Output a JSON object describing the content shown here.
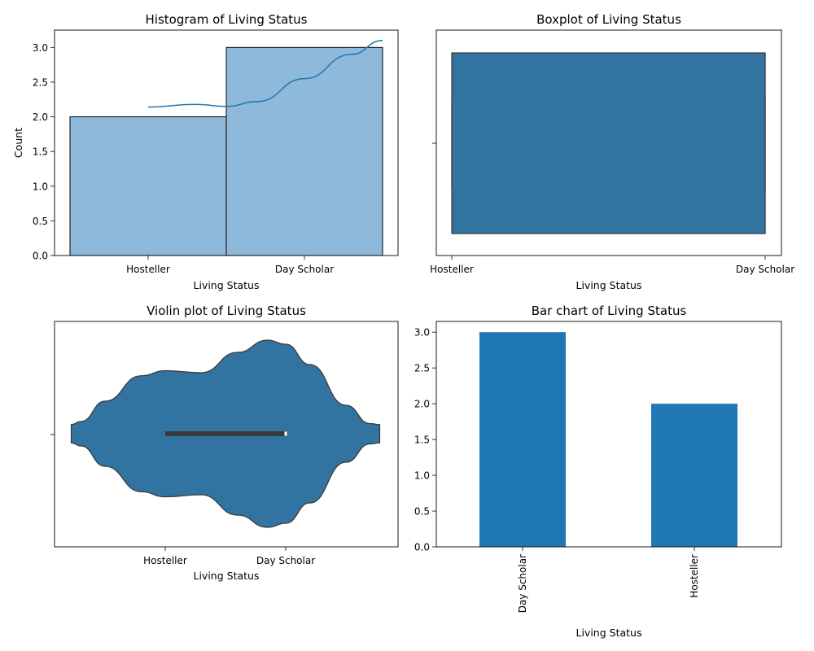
{
  "colors": {
    "hist_fill": "#8fb9da",
    "kde_line": "#1f77b4",
    "seaborn_blue": "#3274a1",
    "bar_blue": "#1f77b4",
    "edge_dark": "#3a3a3a"
  },
  "chart_data": [
    {
      "type": "bar",
      "subtype": "histogram-with-kde",
      "title": "Histogram of Living Status",
      "xlabel": "Living Status",
      "ylabel": "Count",
      "categories": [
        "Hosteller",
        "Day Scholar"
      ],
      "values": [
        2,
        3
      ],
      "ylim": [
        0,
        3.25
      ],
      "yticks": [
        "0.0",
        "0.5",
        "1.0",
        "1.5",
        "2.0",
        "2.5",
        "3.0"
      ],
      "kde": [
        [
          0,
          2.14
        ],
        [
          0.3,
          2.18
        ],
        [
          0.5,
          2.15
        ],
        [
          0.7,
          2.22
        ],
        [
          1.0,
          2.55
        ],
        [
          1.3,
          2.9
        ],
        [
          1.5,
          3.1
        ]
      ],
      "grid": false,
      "legend": "none"
    },
    {
      "type": "box",
      "title": "Boxplot of Living Status",
      "xlabel": "Living Status",
      "ylabel": "",
      "categories": [
        "Hosteller",
        "Day Scholar"
      ],
      "q1": 0,
      "median": 1,
      "q3": 1,
      "whisker_low": 0,
      "whisker_high": 1,
      "grid": false,
      "legend": "none"
    },
    {
      "type": "violin",
      "title": "Violin plot of Living Status",
      "xlabel": "Living Status",
      "ylabel": "",
      "categories": [
        "Hosteller",
        "Day Scholar"
      ],
      "x_range": [
        -0.8,
        1.8
      ],
      "density": [
        [
          -0.78,
          0.09
        ],
        [
          -0.7,
          0.12
        ],
        [
          -0.5,
          0.32
        ],
        [
          -0.2,
          0.57
        ],
        [
          0,
          0.62
        ],
        [
          0.3,
          0.6
        ],
        [
          0.6,
          0.8
        ],
        [
          0.85,
          0.92
        ],
        [
          1.0,
          0.88
        ],
        [
          1.2,
          0.68
        ],
        [
          1.5,
          0.28
        ],
        [
          1.7,
          0.1
        ],
        [
          1.78,
          0.09
        ]
      ],
      "iqr": [
        0,
        1
      ],
      "median": 1,
      "grid": false,
      "legend": "none"
    },
    {
      "type": "bar",
      "title": "Bar chart of Living Status",
      "xlabel": "Living Status",
      "ylabel": "",
      "categories": [
        "Day Scholar",
        "Hosteller"
      ],
      "values": [
        3,
        2
      ],
      "ylim": [
        0,
        3.15
      ],
      "yticks": [
        "0.0",
        "0.5",
        "1.0",
        "1.5",
        "2.0",
        "2.5",
        "3.0"
      ],
      "xtick_rotation": "vertical",
      "grid": false,
      "legend": "none"
    }
  ]
}
